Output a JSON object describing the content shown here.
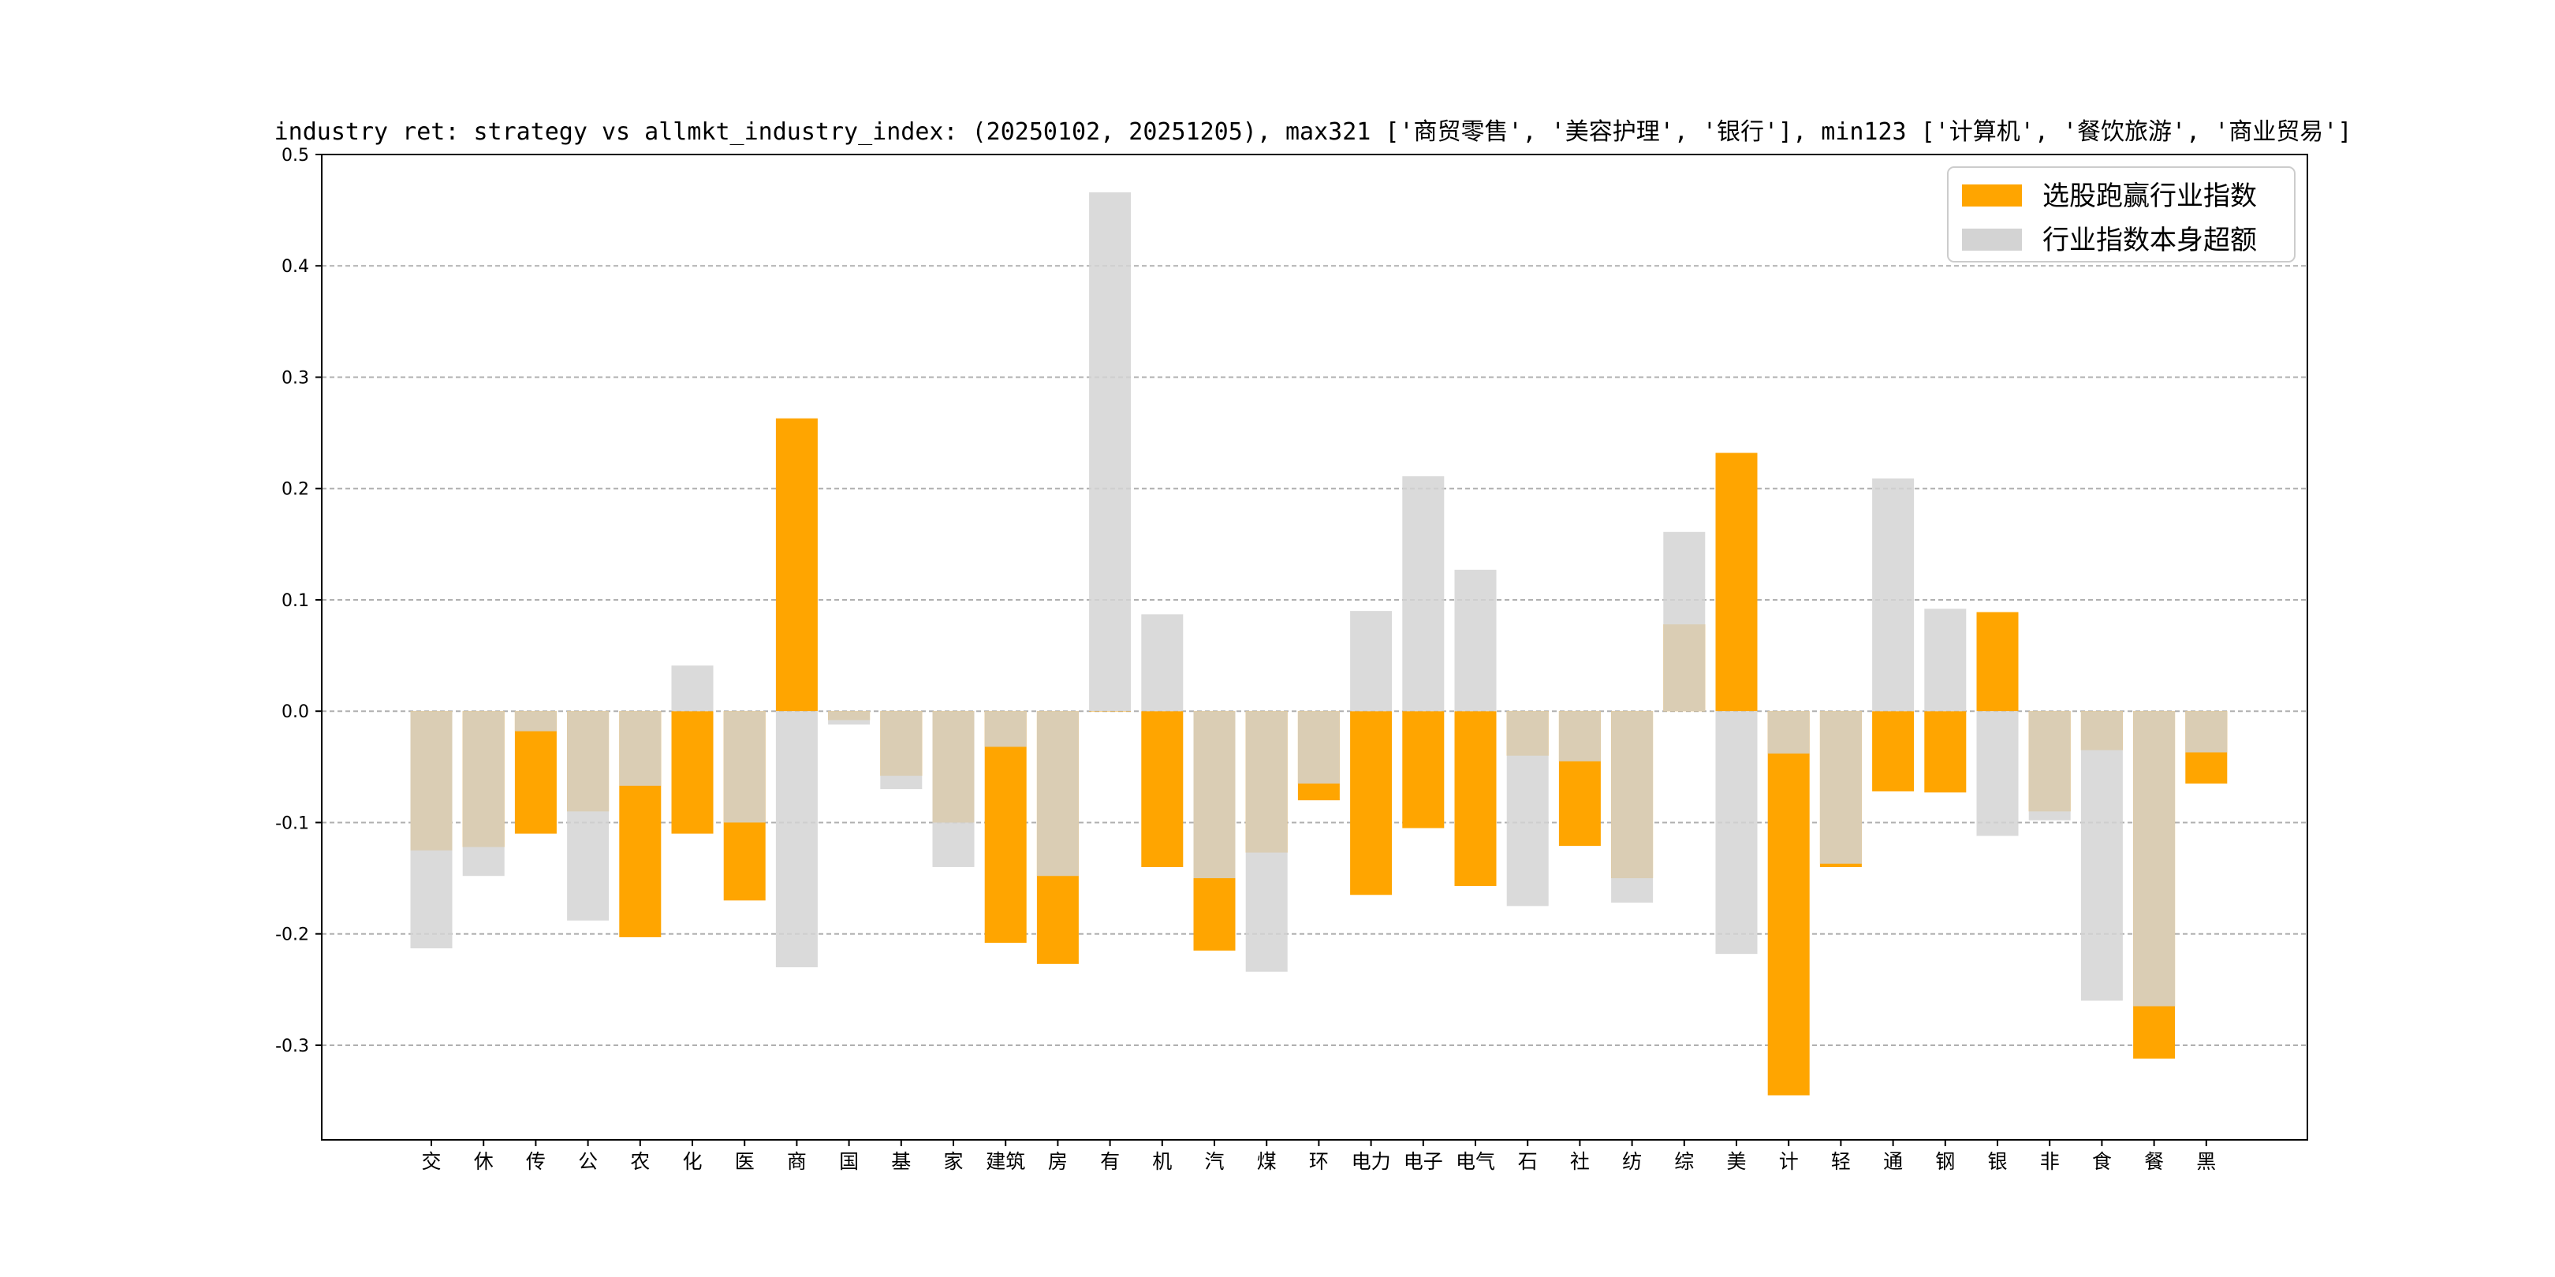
{
  "chart_data": {
    "type": "bar",
    "title": "industry ret: strategy vs allmkt_industry_index: (20250102, 20251205), max321 ['商贸零售', '美容护理', '银行'], min123 ['计算机', '餐饮旅游', '商业贸易']",
    "xlabel": "",
    "ylabel": "",
    "ylim": [
      -0.385,
      0.5
    ],
    "yticks": [
      "0.5",
      "0.4",
      "0.3",
      "0.2",
      "0.1",
      "0.0",
      "-0.1",
      "-0.2",
      "-0.3"
    ],
    "ytick_values": [
      0.5,
      0.4,
      0.3,
      0.2,
      0.1,
      0.0,
      -0.1,
      -0.2,
      -0.3
    ],
    "grid": "horizontal dashed",
    "legend_position": "top-right",
    "categories": [
      "交",
      "休",
      "传",
      "公",
      "农",
      "化",
      "医",
      "商",
      "国",
      "基",
      "家",
      "建筑",
      "房",
      "有",
      "机",
      "汽",
      "煤",
      "环",
      "电力",
      "电子",
      "电气",
      "石",
      "社",
      "纺",
      "综",
      "美",
      "计",
      "轻",
      "通",
      "钢",
      "银",
      "非",
      "食",
      "餐",
      "黑"
    ],
    "series": [
      {
        "name": "选股跑赢行业指数",
        "color": "#FFA500",
        "values": [
          -0.125,
          -0.122,
          -0.11,
          -0.09,
          -0.203,
          -0.11,
          -0.17,
          0.263,
          -0.008,
          -0.058,
          -0.1,
          -0.208,
          -0.227,
          0.0,
          -0.14,
          -0.215,
          -0.127,
          -0.08,
          -0.165,
          -0.105,
          -0.157,
          -0.04,
          -0.121,
          -0.15,
          0.078,
          0.232,
          -0.345,
          -0.14,
          -0.072,
          -0.073,
          0.089,
          -0.09,
          -0.035,
          -0.312,
          -0.065
        ]
      },
      {
        "name": "行业指数本身超额",
        "color": "#D3D3D3",
        "values": [
          -0.213,
          -0.148,
          -0.018,
          -0.188,
          -0.067,
          0.041,
          -0.1,
          -0.23,
          -0.012,
          -0.07,
          -0.14,
          -0.032,
          -0.148,
          0.466,
          0.087,
          -0.15,
          -0.234,
          -0.065,
          0.09,
          0.211,
          0.127,
          -0.175,
          -0.045,
          -0.172,
          0.161,
          -0.218,
          -0.038,
          -0.137,
          0.209,
          0.092,
          -0.112,
          -0.098,
          -0.26,
          -0.265,
          -0.037
        ]
      }
    ]
  }
}
